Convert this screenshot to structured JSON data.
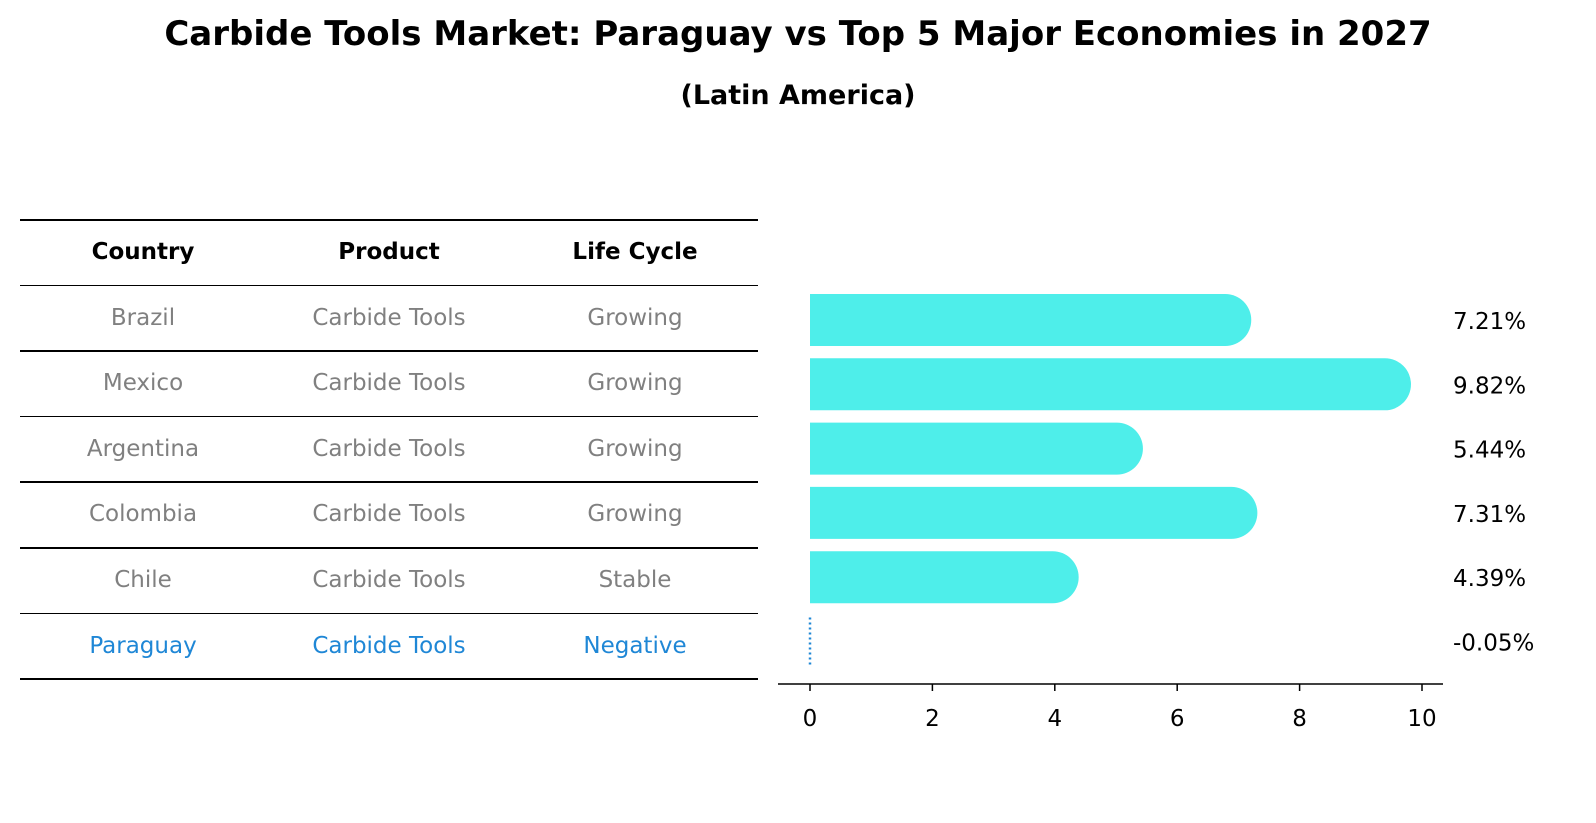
{
  "title": "Carbide Tools Market: Paraguay vs Top 5 Major Economies in 2027",
  "subtitle": "(Latin America)",
  "table": {
    "headers": [
      "Country",
      "Product",
      "Life Cycle"
    ],
    "rows": [
      [
        "Brazil",
        "Carbide Tools",
        "Growing"
      ],
      [
        "Mexico",
        "Carbide Tools",
        "Growing"
      ],
      [
        "Argentina",
        "Carbide Tools",
        "Growing"
      ],
      [
        "Colombia",
        "Carbide Tools",
        "Growing"
      ],
      [
        "Chile",
        "Carbide Tools",
        "Stable"
      ],
      [
        "Paraguay",
        "Carbide Tools",
        "Negative"
      ]
    ],
    "highlight_row": 5,
    "text_color": "#808080",
    "highlight_color": "#1f87d6"
  },
  "chart_data": {
    "type": "bar",
    "orientation": "horizontal",
    "categories": [
      "Brazil",
      "Mexico",
      "Argentina",
      "Colombia",
      "Chile",
      "Paraguay"
    ],
    "values": [
      7.21,
      9.82,
      5.44,
      7.31,
      4.39,
      -0.05
    ],
    "value_labels": [
      "7.21%",
      "9.82%",
      "5.44%",
      "7.31%",
      "4.39%",
      "-0.05%"
    ],
    "xticks": [
      0,
      2,
      4,
      6,
      8,
      10
    ],
    "xlim": [
      -0.5,
      10.3
    ],
    "bar_color": "#4eeeea",
    "negative_color": "#1f87d6",
    "grid": false
  }
}
